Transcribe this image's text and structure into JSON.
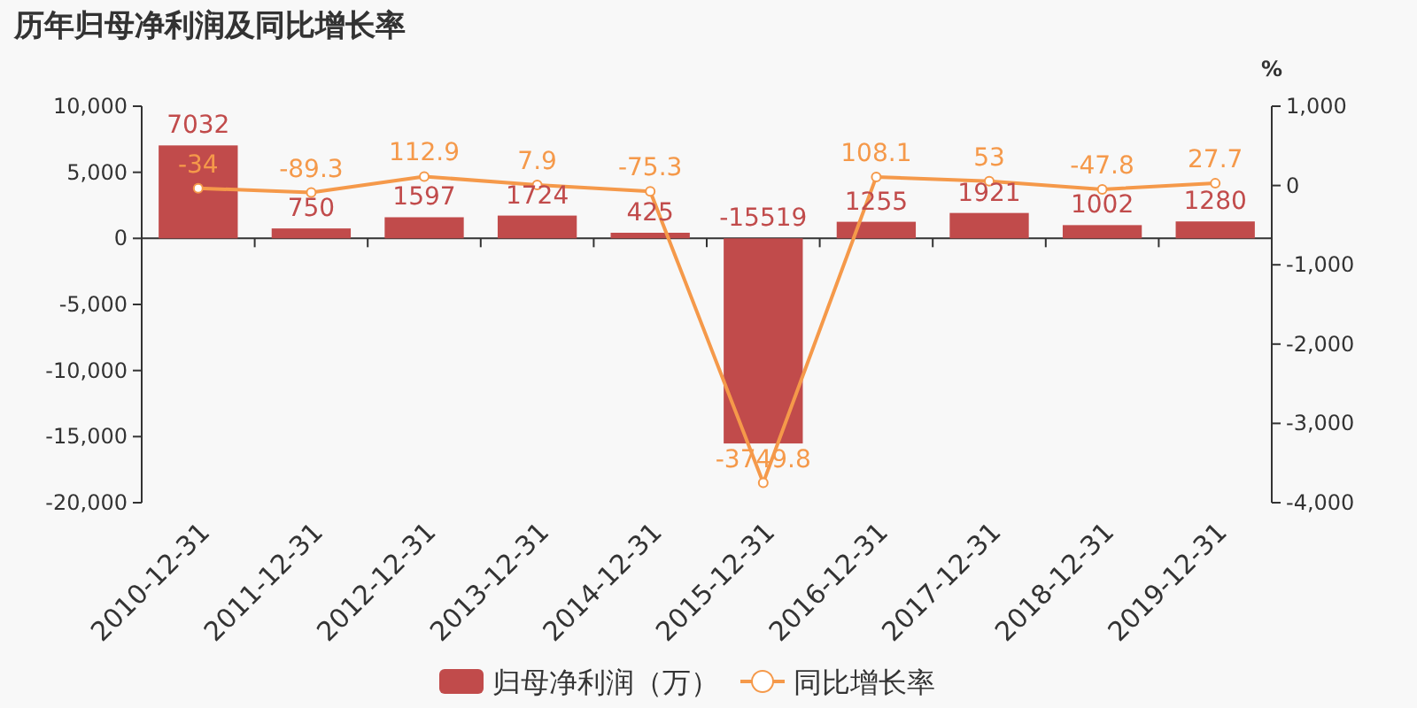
{
  "chart_data": {
    "type": "bar",
    "title": "历年归母净利润及同比增长率",
    "y2label": "%",
    "categories": [
      "2010-12-31",
      "2011-12-31",
      "2012-12-31",
      "2013-12-31",
      "2014-12-31",
      "2015-12-31",
      "2016-12-31",
      "2017-12-31",
      "2018-12-31",
      "2019-12-31"
    ],
    "series": [
      {
        "name": "归母净利润（万）",
        "color": "#c14b4b",
        "values": [
          7032,
          750,
          1597,
          1724,
          425,
          -15519,
          1255,
          1921,
          1002,
          1280
        ]
      },
      {
        "name": "同比增长率",
        "type": "line",
        "axis": "y2",
        "color": "#f5994a",
        "marker": "circle",
        "values": [
          -34,
          -89.3,
          112.9,
          7.9,
          -75.3,
          -3749.8,
          108.1,
          53,
          -47.8,
          27.7
        ]
      }
    ],
    "ylim": [
      -20000,
      10000
    ],
    "yticks": [
      {
        "value": -20000,
        "label": "-20,000"
      },
      {
        "value": -15000,
        "label": "-15,000"
      },
      {
        "value": -10000,
        "label": "-10,000"
      },
      {
        "value": -5000,
        "label": "-5,000"
      },
      0,
      {
        "value": 5000,
        "label": "5,000"
      },
      {
        "value": 10000,
        "label": "10,000"
      }
    ],
    "y2lim": [
      -4000,
      1000
    ],
    "y2ticks": [
      {
        "value": -4000,
        "label": "-4,000"
      },
      {
        "value": -3000,
        "label": "-3,000"
      },
      {
        "value": -2000,
        "label": "-2,000"
      },
      {
        "value": -1000,
        "label": "-1,000"
      },
      0,
      {
        "value": 1000,
        "label": "1,000"
      }
    ],
    "data_labels": true,
    "legend": "bottom"
  }
}
